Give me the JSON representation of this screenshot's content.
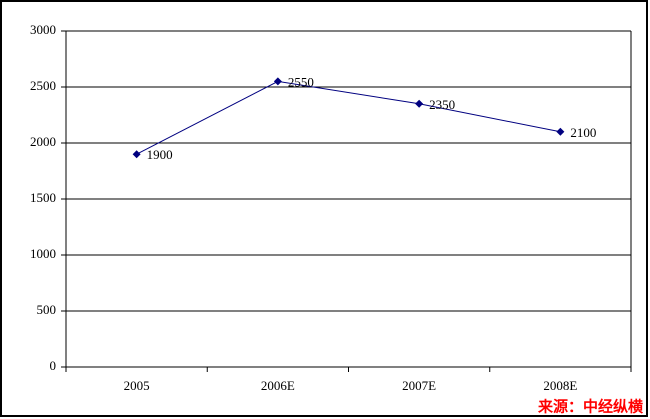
{
  "chart_data": {
    "type": "line",
    "categories": [
      "2005",
      "2006E",
      "2007E",
      "2008E"
    ],
    "series": [
      {
        "name": "value",
        "color": "#000080",
        "values": [
          1900,
          2550,
          2350,
          2100
        ]
      }
    ],
    "ylim": [
      0,
      3000
    ],
    "yticks": [
      0,
      500,
      1000,
      1500,
      2000,
      2500,
      3000
    ],
    "grid": true,
    "source": "来源：中经纵横"
  }
}
